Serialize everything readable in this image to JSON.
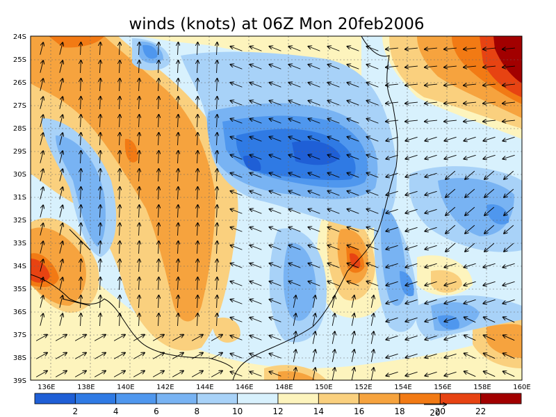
{
  "title": "winds (knots) at 06Z Mon 20feb2006",
  "map": {
    "lon_range": [
      135.2,
      160
    ],
    "lat_range": [
      -39,
      -24
    ],
    "lon_ticks": [
      "136E",
      "138E",
      "140E",
      "142E",
      "144E",
      "146E",
      "148E",
      "150E",
      "152E",
      "154E",
      "156E",
      "158E",
      "160E"
    ],
    "lat_ticks": [
      "24S",
      "25S",
      "26S",
      "27S",
      "28S",
      "29S",
      "30S",
      "31S",
      "32S",
      "33S",
      "34S",
      "35S",
      "36S",
      "37S",
      "38S",
      "39S"
    ]
  },
  "colorbar": {
    "labels": [
      "2",
      "4",
      "6",
      "8",
      "10",
      "12",
      "14",
      "16",
      "18",
      "20",
      "22"
    ],
    "colors": [
      "#1f5fd6",
      "#2f7ae4",
      "#4f97ee",
      "#78b3f3",
      "#a8d2f8",
      "#d8f1fd",
      "#fdf4bd",
      "#fad07e",
      "#f6a33e",
      "#f27a14",
      "#e74312",
      "#a20000"
    ],
    "reference_vector_label": "20"
  }
}
